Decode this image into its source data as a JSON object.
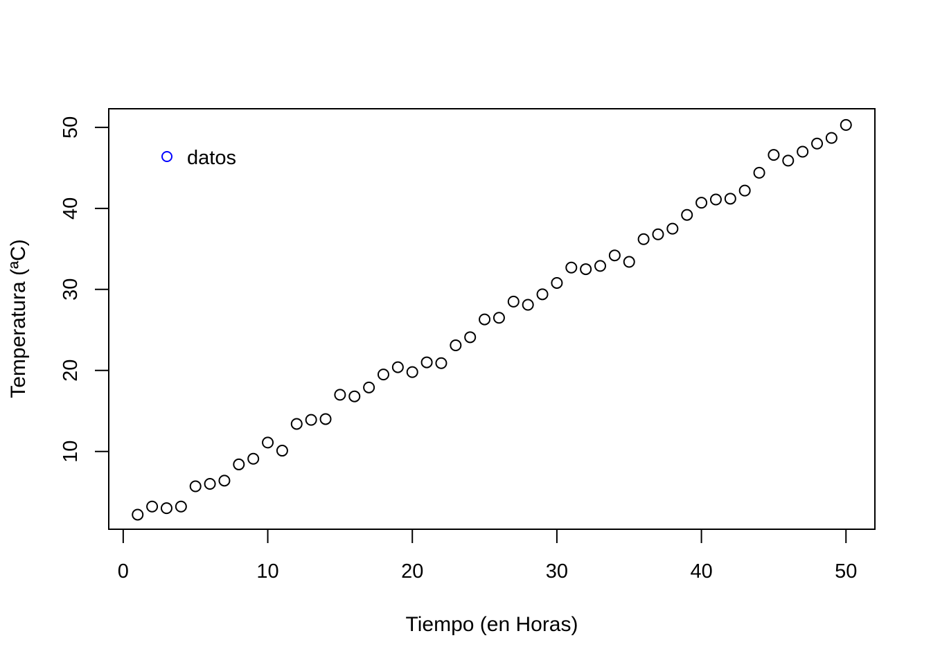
{
  "chart_data": {
    "type": "scatter",
    "title": "",
    "xlabel": "Tiempo (en Horas)",
    "ylabel": "Temperatura (ªC)",
    "xlim": [
      -1,
      52
    ],
    "ylim": [
      0.4,
      52.3
    ],
    "xticks": [
      0,
      10,
      20,
      30,
      40,
      50
    ],
    "yticks": [
      10,
      20,
      30,
      40,
      50
    ],
    "xtick_labels": [
      "0",
      "10",
      "20",
      "30",
      "40",
      "50"
    ],
    "ytick_labels": [
      "10",
      "20",
      "30",
      "40",
      "50"
    ],
    "grid": false,
    "legend": {
      "position": "top-left",
      "marker_color": "#0000ff",
      "entries": [
        "datos"
      ]
    },
    "point_color": "#000000",
    "series": [
      {
        "name": "datos",
        "x": [
          1,
          2,
          3,
          4,
          5,
          6,
          7,
          8,
          9,
          10,
          11,
          12,
          13,
          14,
          15,
          16,
          17,
          18,
          19,
          20,
          21,
          22,
          23,
          24,
          25,
          26,
          27,
          28,
          29,
          30,
          31,
          32,
          33,
          34,
          35,
          36,
          37,
          38,
          39,
          40,
          41,
          42,
          43,
          44,
          45,
          46,
          47,
          48,
          49,
          50
        ],
        "y": [
          2.2,
          3.2,
          3.0,
          3.2,
          5.7,
          6.0,
          6.4,
          8.4,
          9.1,
          11.1,
          10.1,
          13.4,
          13.9,
          14.0,
          17.0,
          16.8,
          17.9,
          19.5,
          20.4,
          19.8,
          21.0,
          20.9,
          23.1,
          24.1,
          26.3,
          26.5,
          28.5,
          28.1,
          29.4,
          30.8,
          32.7,
          32.5,
          32.9,
          34.2,
          33.4,
          36.2,
          36.8,
          37.5,
          39.2,
          40.7,
          41.1,
          41.2,
          42.2,
          44.4,
          46.6,
          45.9,
          47.0,
          48.0,
          48.7,
          50.3
        ]
      }
    ]
  }
}
